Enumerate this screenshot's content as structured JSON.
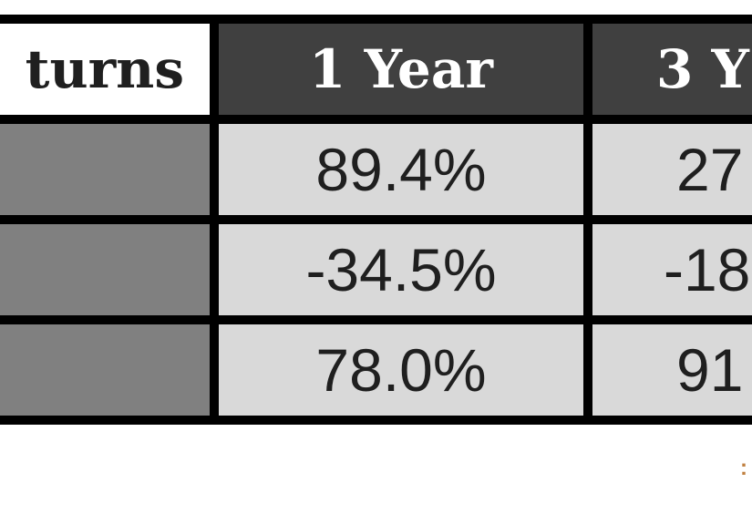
{
  "table": {
    "corner_label": "turns",
    "columns": [
      "1 Year",
      "3 Y"
    ],
    "rows": [
      {
        "label": "",
        "values": [
          "89.4%",
          "27"
        ]
      },
      {
        "label": "",
        "values": [
          "-34.5%",
          "-18"
        ]
      },
      {
        "label": "",
        "values": [
          "78.0%",
          "91"
        ]
      }
    ]
  },
  "footnote": ":",
  "colors": {
    "header_bg": "#404040",
    "header_text": "#ffffff",
    "value_bg": "#d9d9d9",
    "label_bg": "#808080",
    "border": "#000000",
    "footnote": "#c08040"
  }
}
